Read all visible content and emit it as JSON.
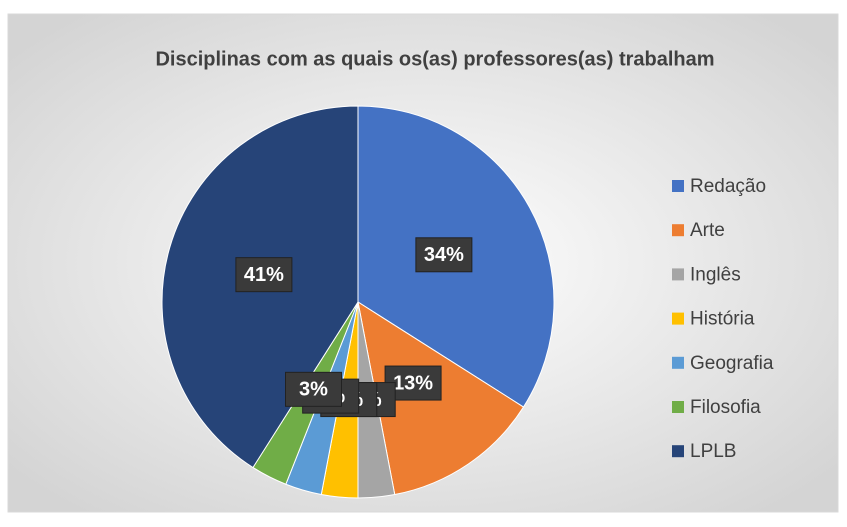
{
  "chart_data": {
    "type": "pie",
    "title": "Disciplinas com as quais os(as) professores(as) trabalham",
    "categories": [
      "Redação",
      "Arte",
      "Inglês",
      "História",
      "Geografia",
      "Filosofia",
      "LPLB"
    ],
    "values": [
      34,
      13,
      3,
      3,
      3,
      3,
      41
    ],
    "value_labels": [
      "34%",
      "13%",
      "3%",
      "3%",
      "3%",
      "3%",
      "41%"
    ],
    "colors": [
      "#4472c4",
      "#ed7d31",
      "#a5a5a5",
      "#ffc000",
      "#5b9bd5",
      "#70ad47",
      "#264478"
    ],
    "legend": "right"
  }
}
